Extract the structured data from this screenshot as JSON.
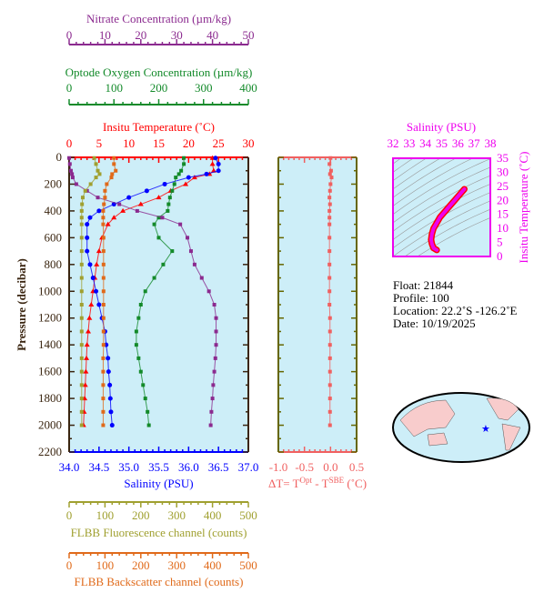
{
  "chart_data": {
    "type": "line",
    "ylabel": "Pressure (decibar)",
    "ylim": [
      0,
      2200
    ],
    "yticks": [
      0,
      200,
      400,
      600,
      800,
      1000,
      1200,
      1400,
      1600,
      1800,
      2000,
      2200
    ],
    "pressure": [
      5,
      50,
      100,
      125,
      150,
      200,
      250,
      300,
      350,
      400,
      450,
      500,
      600,
      700,
      800,
      900,
      1000,
      1100,
      1200,
      1300,
      1400,
      1500,
      1600,
      1700,
      1800,
      1900,
      2000
    ],
    "axes": {
      "nitrate": {
        "title": "Nitrate Concentration (µm/kg)",
        "ticks": [
          "0",
          "10",
          "20",
          "30",
          "40",
          "50"
        ],
        "range": [
          0,
          50
        ],
        "color": "#8b2a8f"
      },
      "oxygen": {
        "title": "Optode Oxygen Concentration (µm/kg)",
        "ticks": [
          "0",
          "100",
          "200",
          "300",
          "400"
        ],
        "range": [
          0,
          400
        ],
        "color": "#138a2a"
      },
      "temperature": {
        "title": "Insitu Temperature (˚C)",
        "ticks": [
          "0",
          "5",
          "10",
          "15",
          "20",
          "25",
          "30"
        ],
        "range": [
          0,
          30
        ],
        "color": "#ff0000"
      },
      "salinity": {
        "title": "Salinity (PSU)",
        "ticks": [
          "34.0",
          "34.5",
          "35.0",
          "35.5",
          "36.0",
          "36.5",
          "37.0"
        ],
        "range": [
          34,
          37
        ],
        "color": "#0000ff"
      },
      "fluorescence": {
        "title": "FLBB Fluorescence channel (counts)",
        "ticks": [
          "0",
          "100",
          "200",
          "300",
          "400",
          "500"
        ],
        "range": [
          0,
          500
        ],
        "color": "#a0a030"
      },
      "backscatter": {
        "title": "FLBB Backscatter channel (counts)",
        "ticks": [
          "0",
          "100",
          "200",
          "300",
          "400",
          "500"
        ],
        "range": [
          0,
          500
        ],
        "color": "#e06a1a"
      },
      "delta": {
        "title": "ΔT= T",
        "sup1": "Opt",
        "mid": " - T",
        "sup2": "SBE",
        "end": " (˚C)",
        "ticks": [
          "-1.0",
          "-0.5",
          "0.0",
          "0.5"
        ],
        "range": [
          -1,
          0.5
        ],
        "color": "#f06060"
      }
    },
    "series": [
      {
        "name": "temperature",
        "values": [
          24,
          24,
          24.2,
          23.5,
          21,
          19.5,
          17,
          15,
          12,
          9,
          7.5,
          6.5,
          5.5,
          5,
          4.6,
          4.3,
          4.0,
          3.7,
          3.4,
          3.2,
          3.0,
          2.9,
          2.8,
          2.7,
          2.6,
          2.5,
          2.4
        ]
      },
      {
        "name": "salinity",
        "values": [
          36.45,
          36.5,
          36.5,
          36.3,
          36.0,
          35.6,
          35.3,
          35.0,
          34.75,
          34.5,
          34.35,
          34.3,
          34.3,
          34.3,
          34.35,
          34.4,
          34.45,
          34.5,
          34.55,
          34.6,
          34.62,
          34.65,
          34.66,
          34.68,
          34.69,
          34.7,
          34.72
        ]
      },
      {
        "name": "oxygen",
        "values": [
          256,
          256,
          250,
          245,
          238,
          235,
          230,
          225,
          222,
          220,
          200,
          190,
          200,
          230,
          210,
          190,
          170,
          160,
          155,
          150,
          150,
          155,
          160,
          165,
          170,
          175,
          178
        ]
      },
      {
        "name": "nitrate",
        "values": [
          0,
          0.2,
          0.5,
          0.8,
          1,
          2,
          5,
          8,
          14,
          19,
          26,
          31,
          33,
          34,
          35,
          37,
          39,
          40.5,
          41,
          41,
          41,
          40.8,
          40.5,
          40.2,
          40,
          39.7,
          39.5
        ]
      },
      {
        "name": "fluorescence",
        "values": [
          70,
          75,
          80,
          85,
          75,
          60,
          45,
          38,
          36,
          35,
          35,
          35,
          35,
          35,
          35,
          35,
          35,
          35,
          35,
          35,
          35,
          35,
          35,
          35,
          35,
          35,
          35
        ]
      },
      {
        "name": "backscatter",
        "values": [
          125,
          125,
          130,
          120,
          118,
          105,
          100,
          100,
          97,
          95,
          95,
          95,
          96,
          96,
          96,
          96,
          96,
          96,
          96,
          96,
          96,
          95,
          95,
          95,
          95,
          95,
          95
        ]
      },
      {
        "name": "delta",
        "values": [
          0,
          -0.02,
          0.01,
          -0.01,
          0.02,
          0,
          -0.01,
          -0.02,
          -0.01,
          -0.02,
          -0.02,
          -0.02,
          -0.02,
          -0.02,
          -0.02,
          -0.02,
          -0.02,
          -0.02,
          -0.01,
          -0.01,
          -0.01,
          -0.01,
          -0.01,
          -0.01,
          -0.01,
          -0.01,
          -0.01
        ]
      }
    ],
    "ts": {
      "title": "Salinity (PSU)",
      "xticks": [
        "32",
        "33",
        "34",
        "35",
        "36",
        "37",
        "38"
      ],
      "xrange": [
        32,
        38
      ],
      "ylabel": "Insitu Temperature (˚C)",
      "yticks": [
        "0",
        "5",
        "10",
        "15",
        "20",
        "25",
        "30",
        "35"
      ],
      "yrange": [
        0,
        35
      ],
      "salinity": [
        36.4,
        36.1,
        35.8,
        35.5,
        35.2,
        34.9,
        34.7,
        34.5,
        34.4,
        34.35,
        34.4,
        34.5,
        34.7
      ],
      "temperature": [
        24,
        22,
        20,
        18,
        16,
        14,
        12,
        10,
        8,
        6,
        4.5,
        3,
        2.3
      ]
    }
  },
  "info": {
    "float": "Float:  21844",
    "profile": "Profile:  100",
    "location": "Location:  22.2˚S  -126.2˚E",
    "date": "Date:  10/19/2025"
  },
  "map": {
    "marker_color": "#0000ff"
  }
}
